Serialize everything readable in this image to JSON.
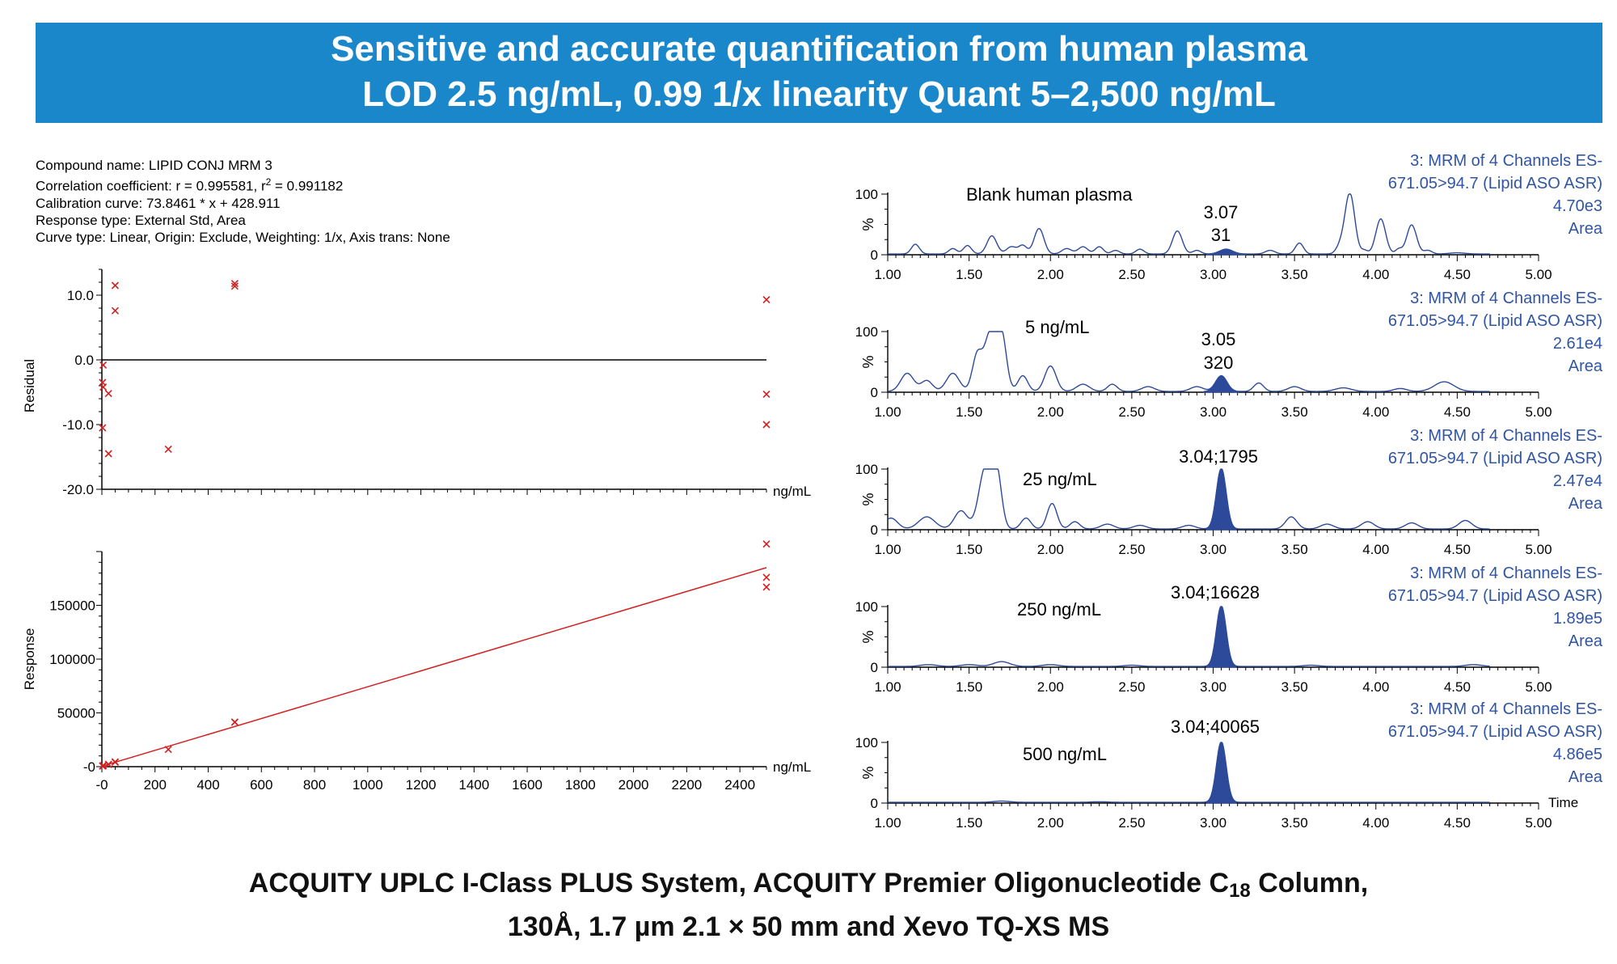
{
  "banner": {
    "line1": "Sensitive and accurate quantification from human plasma",
    "line2": "LOD 2.5 ng/mL, 0.99 1/x linearity Quant 5–2,500 ng/mL"
  },
  "info": {
    "compound": "Compound name: LIPID CONJ MRM 3",
    "correlation_prefix": "Correlation coefficient: r = 0.995581, r",
    "correlation_sup": "2",
    "correlation_suffix": " = 0.991182",
    "calibration": "Calibration curve: 73.8461 * x + 428.911",
    "response": "Response type: External Std, Area",
    "curve": "Curve type: Linear, Origin: Exclude, Weighting: 1/x, Axis trans: None"
  },
  "footer": {
    "line1_a": "ACQUITY UPLC I-Class PLUS System, ACQUITY Premier Oligonucleotide C",
    "line1_sub": "18",
    "line1_b": " Column,",
    "line2": "130Å, 1.7 µm 2.1 × 50 mm and  Xevo TQ-XS MS"
  },
  "colors": {
    "banner": "#1a87cb",
    "marker": "#d42020",
    "trace": "#2d4a9a",
    "header_text": "#2f55a4"
  },
  "chart_data": [
    {
      "type": "scatter",
      "name": "residual",
      "ylabel": "Residual",
      "xlabel": "ng/mL",
      "ylim": [
        -20,
        14
      ],
      "xlim": [
        0,
        2500
      ],
      "yticks": [
        10,
        0,
        -10,
        -20
      ],
      "ytick_labels": [
        "10.0",
        "0.0",
        "-10.0",
        "-20.0"
      ],
      "zero_line": true,
      "points": [
        {
          "x": 5,
          "y": -0.8
        },
        {
          "x": 2.5,
          "y": -3.5
        },
        {
          "x": 5,
          "y": -4.2
        },
        {
          "x": 2.5,
          "y": -10.5
        },
        {
          "x": 25,
          "y": -5.2
        },
        {
          "x": 25,
          "y": -14.5
        },
        {
          "x": 50,
          "y": 11.5
        },
        {
          "x": 50,
          "y": 7.6
        },
        {
          "x": 250,
          "y": -13.8
        },
        {
          "x": 500,
          "y": 11.8
        },
        {
          "x": 500,
          "y": 11.4
        },
        {
          "x": 2500,
          "y": 9.3
        },
        {
          "x": 2500,
          "y": -5.3
        },
        {
          "x": 2500,
          "y": -10
        }
      ]
    },
    {
      "type": "scatter",
      "name": "calibration",
      "ylabel": "Response",
      "xlabel": "ng/mL",
      "xlim": [
        0,
        2500
      ],
      "ylim": [
        0,
        200000
      ],
      "yticks": [
        0,
        50000,
        100000,
        150000
      ],
      "ytick_labels": [
        "-0",
        "50000",
        "100000",
        "150000"
      ],
      "xticks": [
        0,
        200,
        400,
        600,
        800,
        1000,
        1200,
        1400,
        1600,
        1800,
        2000,
        2200,
        2400
      ],
      "xtick_labels": [
        "-0",
        "200",
        "400",
        "600",
        "800",
        "1000",
        "1200",
        "1400",
        "1600",
        "1800",
        "2000",
        "2200",
        "2400"
      ],
      "fit_line": {
        "slope": 73.8461,
        "intercept": 428.911
      },
      "points": [
        {
          "x": 2.5,
          "y": 600
        },
        {
          "x": 5,
          "y": 800
        },
        {
          "x": 5,
          "y": 1000
        },
        {
          "x": 25,
          "y": 2200
        },
        {
          "x": 25,
          "y": 2000
        },
        {
          "x": 50,
          "y": 4500
        },
        {
          "x": 50,
          "y": 4200
        },
        {
          "x": 250,
          "y": 16000
        },
        {
          "x": 500,
          "y": 41500
        },
        {
          "x": 500,
          "y": 41300
        },
        {
          "x": 2500,
          "y": 207000
        },
        {
          "x": 2500,
          "y": 176000
        },
        {
          "x": 2500,
          "y": 167000
        }
      ]
    },
    {
      "type": "line",
      "name": "chromatograms",
      "xlim": [
        1.0,
        5.0
      ],
      "xticks": [
        1.0,
        1.5,
        2.0,
        2.5,
        3.0,
        3.5,
        4.0,
        4.5,
        5.0
      ],
      "xtick_labels": [
        "1.00",
        "1.50",
        "2.00",
        "2.50",
        "3.00",
        "3.50",
        "4.00",
        "4.50",
        "5.00"
      ],
      "yticks": [
        0,
        100
      ],
      "ylabel": "%",
      "x_axis_label": "Time",
      "panels": [
        {
          "sample": "Blank human plasma",
          "peak_label_line1": "3.07",
          "peak_label_line2": "31",
          "header_line1": "3: MRM of 4 Channels ES-",
          "header_line2": "671.05>94.7 (Lipid ASO ASR)",
          "header_line3": "4.70e3",
          "header_line4": "Area",
          "peaks": [
            {
              "t": 1.17,
              "h": 16,
              "w": 0.025
            },
            {
              "t": 1.4,
              "h": 9,
              "w": 0.025
            },
            {
              "t": 1.49,
              "h": 14,
              "w": 0.025
            },
            {
              "t": 1.64,
              "h": 30,
              "w": 0.03
            },
            {
              "t": 1.76,
              "h": 12,
              "w": 0.03
            },
            {
              "t": 1.83,
              "h": 14,
              "w": 0.025
            },
            {
              "t": 1.93,
              "h": 42,
              "w": 0.03
            },
            {
              "t": 2.1,
              "h": 9,
              "w": 0.03
            },
            {
              "t": 2.2,
              "h": 12,
              "w": 0.03
            },
            {
              "t": 2.3,
              "h": 12,
              "w": 0.025
            },
            {
              "t": 2.4,
              "h": 6,
              "w": 0.025
            },
            {
              "t": 2.55,
              "h": 8,
              "w": 0.025
            },
            {
              "t": 2.78,
              "h": 38,
              "w": 0.03
            },
            {
              "t": 2.9,
              "h": 6,
              "w": 0.025
            },
            {
              "t": 3.35,
              "h": 6,
              "w": 0.03
            },
            {
              "t": 3.53,
              "h": 18,
              "w": 0.025
            },
            {
              "t": 3.78,
              "h": 12,
              "w": 0.025
            },
            {
              "t": 3.84,
              "h": 100,
              "w": 0.03
            },
            {
              "t": 3.93,
              "h": 6,
              "w": 0.02
            },
            {
              "t": 4.03,
              "h": 58,
              "w": 0.03
            },
            {
              "t": 4.14,
              "h": 8,
              "w": 0.02
            },
            {
              "t": 4.22,
              "h": 48,
              "w": 0.03
            },
            {
              "t": 4.32,
              "h": 6,
              "w": 0.025
            },
            {
              "t": 4.5,
              "h": 2,
              "w": 0.05
            }
          ],
          "filled_peak": {
            "t": 3.08,
            "h": 8,
            "w": 0.04
          }
        },
        {
          "sample": "5 ng/mL",
          "peak_label_line1": "3.05",
          "peak_label_line2": "320",
          "header_line1": "3: MRM of 4 Channels ES-",
          "header_line2": "671.05>94.7 (Lipid ASO ASR)",
          "header_line3": "2.61e4",
          "header_line4": "Area",
          "peaks": [
            {
              "t": 1.12,
              "h": 30,
              "w": 0.04
            },
            {
              "t": 1.24,
              "h": 18,
              "w": 0.035
            },
            {
              "t": 1.4,
              "h": 30,
              "w": 0.04
            },
            {
              "t": 1.55,
              "h": 60,
              "w": 0.03
            },
            {
              "t": 1.63,
              "h": 95,
              "w": 0.035
            },
            {
              "t": 1.7,
              "h": 92,
              "w": 0.03
            },
            {
              "t": 1.83,
              "h": 26,
              "w": 0.03
            },
            {
              "t": 2.0,
              "h": 42,
              "w": 0.035
            },
            {
              "t": 2.2,
              "h": 12,
              "w": 0.04
            },
            {
              "t": 2.38,
              "h": 12,
              "w": 0.03
            },
            {
              "t": 2.6,
              "h": 8,
              "w": 0.04
            },
            {
              "t": 2.9,
              "h": 8,
              "w": 0.04
            },
            {
              "t": 3.28,
              "h": 14,
              "w": 0.03
            },
            {
              "t": 3.5,
              "h": 8,
              "w": 0.04
            },
            {
              "t": 3.8,
              "h": 6,
              "w": 0.05
            },
            {
              "t": 4.15,
              "h": 5,
              "w": 0.04
            },
            {
              "t": 4.42,
              "h": 16,
              "w": 0.06
            }
          ],
          "filled_peak": {
            "t": 3.05,
            "h": 26,
            "w": 0.035
          }
        },
        {
          "sample": "25 ng/mL",
          "peak_label_line1": "3.04;1795",
          "header_line1": "3: MRM of 4 Channels ES-",
          "header_line2": "671.05>94.7 (Lipid ASO ASR)",
          "header_line3": "2.47e4",
          "header_line4": "Area",
          "peaks": [
            {
              "t": 1.02,
              "h": 18,
              "w": 0.04
            },
            {
              "t": 1.24,
              "h": 20,
              "w": 0.05
            },
            {
              "t": 1.45,
              "h": 30,
              "w": 0.04
            },
            {
              "t": 1.6,
              "h": 100,
              "w": 0.04
            },
            {
              "t": 1.67,
              "h": 88,
              "w": 0.03
            },
            {
              "t": 1.85,
              "h": 18,
              "w": 0.03
            },
            {
              "t": 2.01,
              "h": 42,
              "w": 0.03
            },
            {
              "t": 2.15,
              "h": 12,
              "w": 0.03
            },
            {
              "t": 2.35,
              "h": 8,
              "w": 0.04
            },
            {
              "t": 2.55,
              "h": 6,
              "w": 0.04
            },
            {
              "t": 2.85,
              "h": 6,
              "w": 0.04
            },
            {
              "t": 3.48,
              "h": 20,
              "w": 0.035
            },
            {
              "t": 3.7,
              "h": 8,
              "w": 0.04
            },
            {
              "t": 3.95,
              "h": 12,
              "w": 0.04
            },
            {
              "t": 4.22,
              "h": 10,
              "w": 0.04
            },
            {
              "t": 4.55,
              "h": 14,
              "w": 0.04
            }
          ],
          "filled_peak": {
            "t": 3.05,
            "h": 100,
            "w": 0.03
          }
        },
        {
          "sample": "250 ng/mL",
          "peak_label_line1": "3.04;16628",
          "header_line1": "3: MRM of 4 Channels ES-",
          "header_line2": "671.05>94.7 (Lipid ASO ASR)",
          "header_line3": "1.89e5",
          "header_line4": "Area",
          "peaks": [
            {
              "t": 1.25,
              "h": 3,
              "w": 0.05
            },
            {
              "t": 1.5,
              "h": 3,
              "w": 0.05
            },
            {
              "t": 1.7,
              "h": 8,
              "w": 0.05
            },
            {
              "t": 2.0,
              "h": 3,
              "w": 0.05
            },
            {
              "t": 2.5,
              "h": 2,
              "w": 0.05
            },
            {
              "t": 3.6,
              "h": 2,
              "w": 0.05
            },
            {
              "t": 4.6,
              "h": 3,
              "w": 0.05
            }
          ],
          "filled_peak": {
            "t": 3.05,
            "h": 100,
            "w": 0.03
          }
        },
        {
          "sample": "500 ng/mL",
          "peak_label_line1": "3.04;40065",
          "header_line1": "3: MRM of 4 Channels ES-",
          "header_line2": "671.05>94.7 (Lipid ASO ASR)",
          "header_line3": "4.86e5",
          "header_line4": "Area",
          "peaks": [
            {
              "t": 1.7,
              "h": 2,
              "w": 0.05
            },
            {
              "t": 2.3,
              "h": 1,
              "w": 0.05
            }
          ],
          "filled_peak": {
            "t": 3.05,
            "h": 100,
            "w": 0.03
          }
        }
      ]
    }
  ]
}
